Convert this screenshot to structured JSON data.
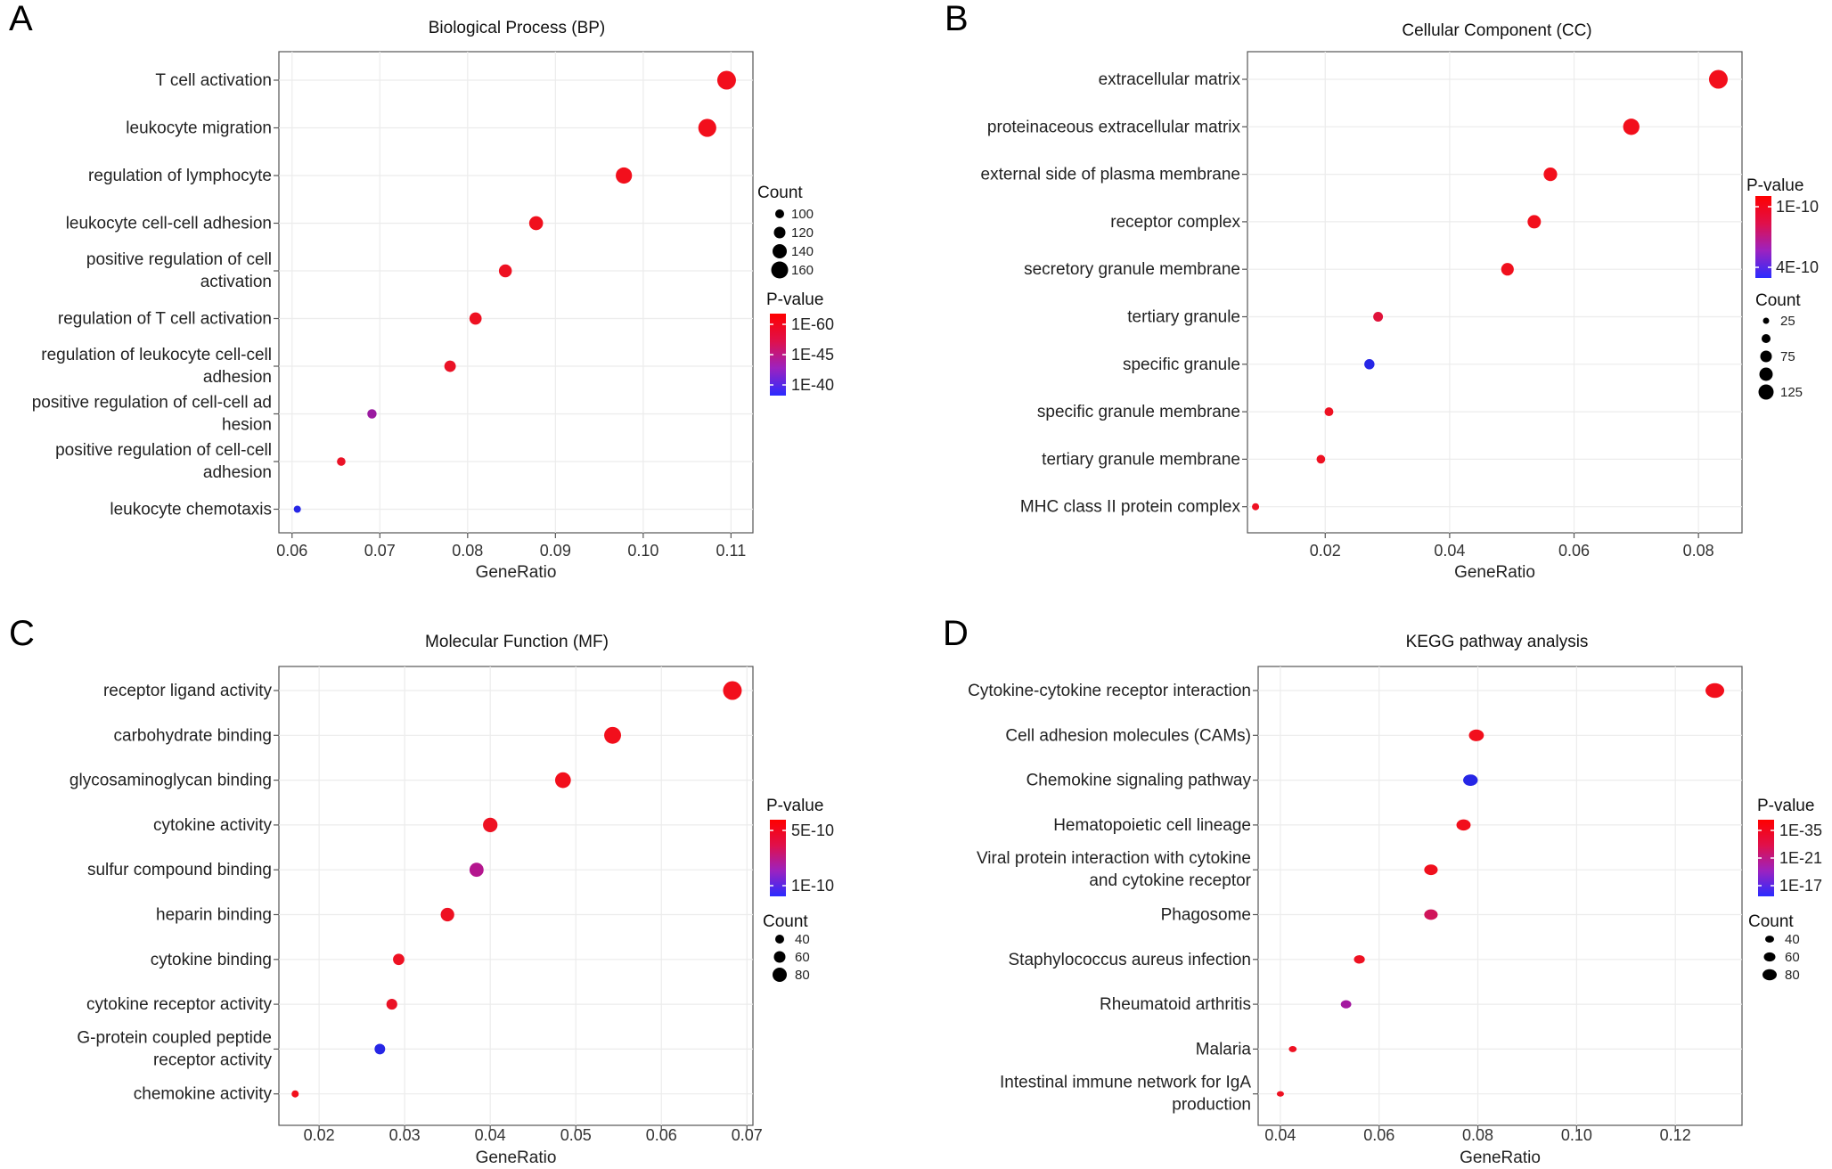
{
  "chart_data": [
    {
      "panel": "A",
      "type": "scatter",
      "title": "Biological Process (BP)",
      "xlabel": "GeneRatio",
      "xlim": [
        0.0585,
        0.1125
      ],
      "xticks": [
        0.06,
        0.07,
        0.08,
        0.09,
        0.1,
        0.11
      ],
      "xtick_labels": [
        "0.06",
        "0.07",
        "0.08",
        "0.09",
        "0.10",
        "0.11"
      ],
      "categories": [
        [
          "T cell activation"
        ],
        [
          "leukocyte migration"
        ],
        [
          "regulation of lymphocyte"
        ],
        [
          "leukocyte cell-cell adhesion"
        ],
        [
          "positive regulation of cell",
          "activation"
        ],
        [
          "regulation of T cell activation"
        ],
        [
          "regulation of leukocyte cell-cell",
          "adhesion"
        ],
        [
          "positive regulation of cell-cell ad",
          "hesion"
        ],
        [
          "positive regulation of cell-cell",
          "adhesion"
        ],
        [
          "leukocyte chemotaxis"
        ]
      ],
      "x": [
        0.1095,
        0.1073,
        0.0978,
        0.0878,
        0.0843,
        0.0809,
        0.078,
        0.0691,
        0.0656,
        0.0606
      ],
      "count": [
        165,
        160,
        148,
        132,
        125,
        120,
        115,
        100,
        95,
        85
      ],
      "color": [
        "#f20f1c",
        "#f20f1c",
        "#f20f1c",
        "#f0101d",
        "#ee1122",
        "#ee1122",
        "#ea1226",
        "#9a1aa0",
        "#ea1226",
        "#2626e6"
      ],
      "size_legend": {
        "title": "Count",
        "values": [
          "100",
          "120",
          "140",
          "160"
        ],
        "radii": [
          5,
          6.5,
          8,
          9.5
        ]
      },
      "color_legend": {
        "title": "P-value",
        "labels": [
          "1E-60",
          "1E-45",
          "1E-40"
        ]
      }
    },
    {
      "panel": "B",
      "type": "scatter",
      "title": "Cellular Component (CC)",
      "xlabel": "GeneRatio",
      "xlim": [
        0.0075,
        0.087
      ],
      "xticks": [
        0.02,
        0.04,
        0.06,
        0.08
      ],
      "xtick_labels": [
        "0.02",
        "0.04",
        "0.06",
        "0.08"
      ],
      "categories": [
        [
          "extracellular matrix"
        ],
        [
          "proteinaceous extracellular matrix"
        ],
        [
          "external side of plasma membrane"
        ],
        [
          "receptor complex"
        ],
        [
          "secretory granule membrane"
        ],
        [
          "tertiary granule"
        ],
        [
          "specific granule"
        ],
        [
          "specific granule membrane"
        ],
        [
          "tertiary granule membrane"
        ],
        [
          "MHC class II protein complex"
        ]
      ],
      "x": [
        0.0832,
        0.0692,
        0.0562,
        0.0536,
        0.0493,
        0.0285,
        0.0271,
        0.0206,
        0.0193,
        0.0088
      ],
      "count": [
        135,
        110,
        80,
        78,
        70,
        40,
        45,
        30,
        28,
        12
      ],
      "color": [
        "#f20f1c",
        "#f20f1c",
        "#f20f1c",
        "#f20f1c",
        "#f0101d",
        "#e0123a",
        "#2626e6",
        "#ee1122",
        "#ee1122",
        "#ee1122"
      ],
      "size_legend": {
        "title": "Count",
        "values": [
          "25",
          "",
          "75",
          "",
          "125"
        ],
        "radii": [
          3.5,
          5,
          6.5,
          7.5,
          8.5
        ]
      },
      "color_legend": {
        "title": "P-value",
        "labels": [
          "1E-10",
          "4E-10"
        ]
      }
    },
    {
      "panel": "C",
      "type": "scatter",
      "title": "Molecular Function (MF)",
      "xlabel": "GeneRatio",
      "xlim": [
        0.0153,
        0.0707
      ],
      "xticks": [
        0.02,
        0.03,
        0.04,
        0.05,
        0.06,
        0.07
      ],
      "xtick_labels": [
        "0.02",
        "0.03",
        "0.04",
        "0.05",
        "0.06",
        "0.07"
      ],
      "categories": [
        [
          "receptor ligand activity"
        ],
        [
          "carbohydrate binding"
        ],
        [
          "glycosaminoglycan binding"
        ],
        [
          "cytokine activity"
        ],
        [
          "sulfur compound binding"
        ],
        [
          "heparin binding"
        ],
        [
          "cytokine binding"
        ],
        [
          "cytokine receptor activity"
        ],
        [
          "G-protein coupled peptide",
          "receptor activity"
        ],
        [
          "chemokine activity"
        ]
      ],
      "x": [
        0.0683,
        0.0543,
        0.0485,
        0.04,
        0.0384,
        0.035,
        0.0293,
        0.0285,
        0.0271,
        0.0172
      ],
      "count": [
        88,
        78,
        72,
        65,
        63,
        60,
        48,
        45,
        44,
        25
      ],
      "color": [
        "#f20f1c",
        "#f20f1c",
        "#f20f1c",
        "#ee1122",
        "#b4168e",
        "#ee1122",
        "#ee1122",
        "#ea1226",
        "#2626e6",
        "#f20f1c"
      ],
      "size_legend": {
        "title": "Count",
        "values": [
          "40",
          "60",
          "80"
        ],
        "radii": [
          5,
          6.5,
          8
        ]
      },
      "color_legend": {
        "title": "P-value",
        "labels": [
          "5E-10",
          "1E-10"
        ]
      }
    },
    {
      "panel": "D",
      "type": "scatter",
      "title": "KEGG pathway analysis",
      "xlabel": "GeneRatio",
      "xlim": [
        0.0355,
        0.1335
      ],
      "xticks": [
        0.04,
        0.06,
        0.08,
        0.1,
        0.12
      ],
      "xtick_labels": [
        "0.04",
        "0.06",
        "0.08",
        "0.10",
        "0.12"
      ],
      "categories": [
        [
          "Cytokine-cytokine receptor interaction"
        ],
        [
          "Cell adhesion molecules (CAMs)"
        ],
        [
          "Chemokine signaling pathway"
        ],
        [
          "Hematopoietic cell lineage"
        ],
        [
          "Viral protein interaction with cytokine",
          "and cytokine receptor"
        ],
        [
          "Phagosome"
        ],
        [
          "Staphylococcus aureus infection"
        ],
        [
          "Rheumatoid arthritis"
        ],
        [
          "Malaria"
        ],
        [
          "Intestinal immune network for IgA",
          "production"
        ]
      ],
      "x": [
        0.128,
        0.0797,
        0.0785,
        0.0771,
        0.0705,
        0.0705,
        0.056,
        0.0533,
        0.0425,
        0.04
      ],
      "count": [
        90,
        70,
        68,
        66,
        62,
        62,
        48,
        46,
        32,
        28
      ],
      "color": [
        "#f20f1c",
        "#f20f1c",
        "#2626e6",
        "#f20f1c",
        "#f0101d",
        "#d0145a",
        "#ee1122",
        "#a418a0",
        "#ee1122",
        "#ee1122"
      ],
      "size_legend": {
        "title": "Count",
        "values": [
          "40",
          "60",
          "80"
        ],
        "radii": [
          5,
          6.5,
          8
        ]
      },
      "color_legend": {
        "title": "P-value",
        "labels": [
          "1E-35",
          "1E-21",
          "1E-17"
        ]
      }
    }
  ]
}
